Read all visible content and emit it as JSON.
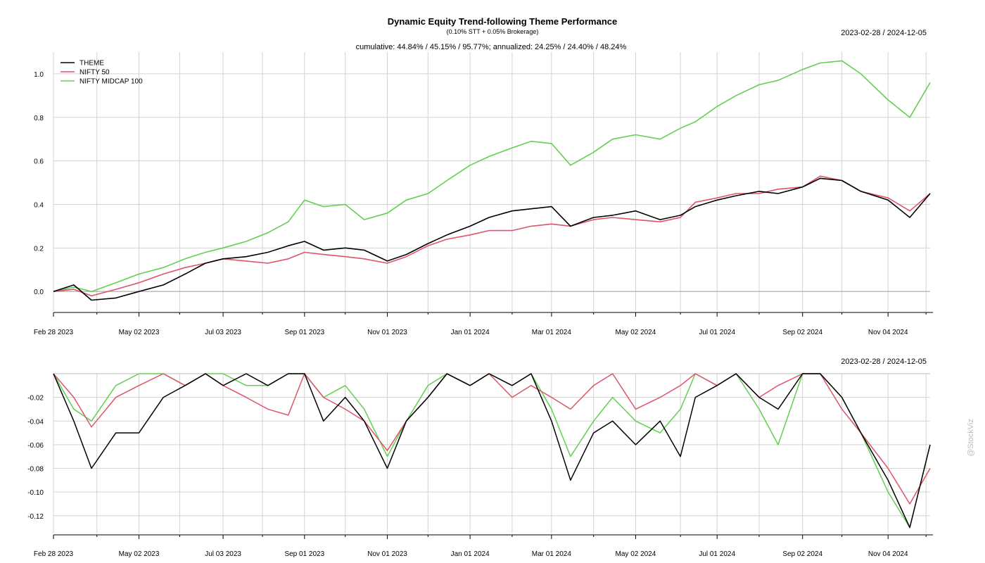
{
  "header": {
    "title": "Dynamic Equity Trend-following Theme Performance",
    "subtitle": "(0.10% STT + 0.05% Brokerage)",
    "stats": "cumulative: 44.84% / 45.15% / 95.77%; annualized: 24.25% / 24.40% / 48.24%",
    "range_top": "2023-02-28 / 2024-12-05",
    "range_bottom": "2023-02-28 / 2024-12-05"
  },
  "watermark": "@StockViz",
  "colors": {
    "theme": "#000000",
    "nifty50": "#DF536B",
    "midcap": "#61D04F",
    "grid": "#d3d3d3"
  },
  "chart_data": [
    {
      "type": "line",
      "panel": "cumulative-returns",
      "x_ticks": [
        "Feb 28 2023",
        "May 02 2023",
        "Jul 03 2023",
        "Sep 01 2023",
        "Nov 01 2023",
        "Jan 01 2024",
        "Mar 01 2024",
        "May 02 2024",
        "Jul 01 2024",
        "Sep 02 2024",
        "Nov 04 2024"
      ],
      "y_ticks": [
        "0.0",
        "0.2",
        "0.4",
        "0.6",
        "0.8",
        "1.0"
      ],
      "ylim": [
        -0.09,
        1.1
      ],
      "grid": true,
      "legend": "top-left",
      "x": [
        "2023-02-28",
        "2023-03-15",
        "2023-03-28",
        "2023-04-15",
        "2023-05-02",
        "2023-05-20",
        "2023-06-05",
        "2023-06-20",
        "2023-07-03",
        "2023-07-20",
        "2023-08-05",
        "2023-08-20",
        "2023-09-01",
        "2023-09-15",
        "2023-10-01",
        "2023-10-15",
        "2023-11-01",
        "2023-11-15",
        "2023-12-01",
        "2023-12-15",
        "2024-01-01",
        "2024-01-15",
        "2024-02-01",
        "2024-02-15",
        "2024-03-01",
        "2024-03-15",
        "2024-04-01",
        "2024-04-15",
        "2024-05-02",
        "2024-05-20",
        "2024-06-04",
        "2024-06-15",
        "2024-07-01",
        "2024-07-15",
        "2024-08-01",
        "2024-08-15",
        "2024-09-02",
        "2024-09-15",
        "2024-10-01",
        "2024-10-15",
        "2024-11-04",
        "2024-11-20",
        "2024-12-05"
      ],
      "series": [
        {
          "name": "THEME",
          "values": [
            0.0,
            0.03,
            -0.04,
            -0.03,
            0.0,
            0.03,
            0.08,
            0.13,
            0.15,
            0.16,
            0.18,
            0.21,
            0.23,
            0.19,
            0.2,
            0.19,
            0.14,
            0.17,
            0.22,
            0.26,
            0.3,
            0.34,
            0.37,
            0.38,
            0.39,
            0.3,
            0.34,
            0.35,
            0.37,
            0.33,
            0.35,
            0.39,
            0.42,
            0.44,
            0.46,
            0.45,
            0.48,
            0.52,
            0.51,
            0.46,
            0.42,
            0.34,
            0.45
          ]
        },
        {
          "name": "NIFTY 50",
          "values": [
            0.0,
            0.01,
            -0.02,
            0.01,
            0.04,
            0.08,
            0.11,
            0.13,
            0.15,
            0.14,
            0.13,
            0.15,
            0.18,
            0.17,
            0.16,
            0.15,
            0.13,
            0.16,
            0.21,
            0.24,
            0.26,
            0.28,
            0.28,
            0.3,
            0.31,
            0.3,
            0.33,
            0.34,
            0.33,
            0.32,
            0.34,
            0.41,
            0.43,
            0.45,
            0.45,
            0.47,
            0.48,
            0.53,
            0.51,
            0.46,
            0.43,
            0.37,
            0.45
          ]
        },
        {
          "name": "NIFTY MIDCAP 100",
          "values": [
            0.0,
            0.02,
            0.0,
            0.04,
            0.08,
            0.11,
            0.15,
            0.18,
            0.2,
            0.23,
            0.27,
            0.32,
            0.42,
            0.39,
            0.4,
            0.33,
            0.36,
            0.42,
            0.45,
            0.51,
            0.58,
            0.62,
            0.66,
            0.69,
            0.68,
            0.58,
            0.64,
            0.7,
            0.72,
            0.7,
            0.75,
            0.78,
            0.85,
            0.9,
            0.95,
            0.97,
            1.02,
            1.05,
            1.06,
            1.0,
            0.88,
            0.8,
            0.96
          ]
        }
      ]
    },
    {
      "type": "line",
      "panel": "drawdowns",
      "x_ticks": [
        "Feb 28 2023",
        "May 02 2023",
        "Jul 03 2023",
        "Sep 01 2023",
        "Nov 01 2023",
        "Jan 01 2024",
        "Mar 01 2024",
        "May 02 2024",
        "Jul 01 2024",
        "Sep 02 2024",
        "Nov 04 2024"
      ],
      "y_ticks": [
        "-0.02",
        "-0.04",
        "-0.06",
        "-0.08",
        "-0.10",
        "-0.12"
      ],
      "ylim": [
        -0.135,
        0.0
      ],
      "grid": true,
      "x": [
        "2023-02-28",
        "2023-03-15",
        "2023-03-28",
        "2023-04-15",
        "2023-05-02",
        "2023-05-20",
        "2023-06-05",
        "2023-06-20",
        "2023-07-03",
        "2023-07-20",
        "2023-08-05",
        "2023-08-20",
        "2023-09-01",
        "2023-09-15",
        "2023-10-01",
        "2023-10-15",
        "2023-11-01",
        "2023-11-15",
        "2023-12-01",
        "2023-12-15",
        "2024-01-01",
        "2024-01-15",
        "2024-02-01",
        "2024-02-15",
        "2024-03-01",
        "2024-03-15",
        "2024-04-01",
        "2024-04-15",
        "2024-05-02",
        "2024-05-20",
        "2024-06-04",
        "2024-06-15",
        "2024-07-01",
        "2024-07-15",
        "2024-08-01",
        "2024-08-15",
        "2024-09-02",
        "2024-09-15",
        "2024-10-01",
        "2024-10-15",
        "2024-11-04",
        "2024-11-20",
        "2024-12-05"
      ],
      "series": [
        {
          "name": "THEME",
          "values": [
            0.0,
            -0.04,
            -0.08,
            -0.05,
            -0.05,
            -0.02,
            -0.01,
            0.0,
            -0.01,
            0.0,
            -0.01,
            0.0,
            0.0,
            -0.04,
            -0.02,
            -0.04,
            -0.08,
            -0.04,
            -0.02,
            0.0,
            -0.01,
            0.0,
            -0.01,
            0.0,
            -0.04,
            -0.09,
            -0.05,
            -0.04,
            -0.06,
            -0.04,
            -0.07,
            -0.02,
            -0.01,
            0.0,
            -0.02,
            -0.03,
            0.0,
            0.0,
            -0.02,
            -0.05,
            -0.09,
            -0.13,
            -0.06
          ]
        },
        {
          "name": "NIFTY 50",
          "values": [
            0.0,
            -0.02,
            -0.045,
            -0.02,
            -0.01,
            0.0,
            -0.01,
            0.0,
            -0.01,
            -0.02,
            -0.03,
            -0.035,
            0.0,
            -0.02,
            -0.03,
            -0.04,
            -0.065,
            -0.04,
            -0.02,
            0.0,
            -0.01,
            0.0,
            -0.02,
            -0.01,
            -0.02,
            -0.03,
            -0.01,
            0.0,
            -0.03,
            -0.02,
            -0.01,
            0.0,
            -0.01,
            0.0,
            -0.02,
            -0.01,
            0.0,
            0.0,
            -0.03,
            -0.05,
            -0.08,
            -0.11,
            -0.08
          ]
        },
        {
          "name": "NIFTY MIDCAP 100",
          "values": [
            0.0,
            -0.03,
            -0.04,
            -0.01,
            0.0,
            0.0,
            -0.01,
            0.0,
            0.0,
            -0.01,
            -0.01,
            0.0,
            0.0,
            -0.02,
            -0.01,
            -0.03,
            -0.07,
            -0.04,
            -0.01,
            0.0,
            -0.01,
            0.0,
            -0.01,
            0.0,
            -0.03,
            -0.07,
            -0.04,
            -0.02,
            -0.04,
            -0.05,
            -0.03,
            0.0,
            -0.01,
            0.0,
            -0.03,
            -0.06,
            0.0,
            0.0,
            -0.02,
            -0.05,
            -0.1,
            -0.13,
            -0.06
          ]
        }
      ]
    }
  ]
}
